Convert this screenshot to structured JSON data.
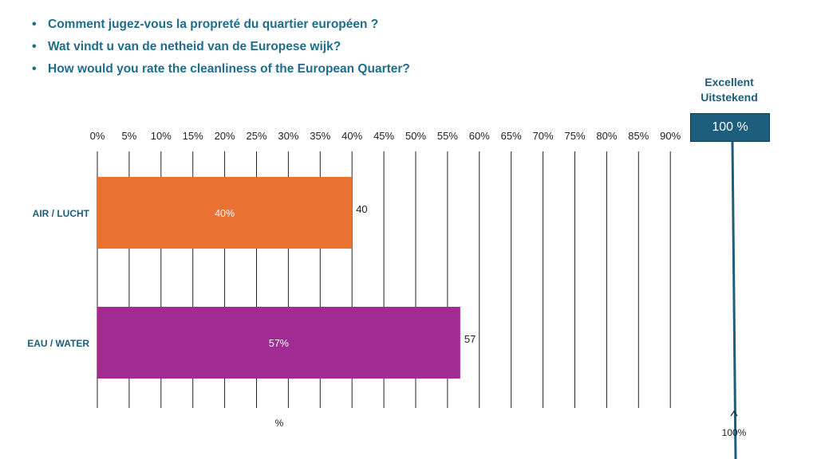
{
  "questions": [
    "Comment jugez-vous la propreté du quartier européen ?",
    "Wat vindt u van de netheid van de Europese wijk?",
    "How would you rate the cleanliness of the European Quarter?"
  ],
  "callout": {
    "label_line1": "Excellent",
    "label_line2": "Uitstekend",
    "value": "100 %"
  },
  "colors": {
    "air": "#e97132",
    "water": "#a02b93",
    "accent": "#1d5d7d",
    "gridline": "#222222"
  },
  "chart_data": {
    "type": "bar",
    "orientation": "horizontal",
    "categories": [
      "AIR / LUCHT",
      "EAU / WATER"
    ],
    "values": [
      40,
      57
    ],
    "inner_labels": [
      "40%",
      "57%"
    ],
    "end_labels": [
      "40",
      "57"
    ],
    "x_ticks": [
      "0%",
      "5%",
      "10%",
      "15%",
      "20%",
      "25%",
      "30%",
      "35%",
      "40%",
      "45%",
      "50%",
      "55%",
      "60%",
      "65%",
      "70%",
      "75%",
      "80%",
      "85%",
      "90%"
    ],
    "xlim": [
      0,
      100
    ],
    "xlabel": "%",
    "reference_line": {
      "value": 100,
      "label": "100%"
    },
    "grid": true
  }
}
